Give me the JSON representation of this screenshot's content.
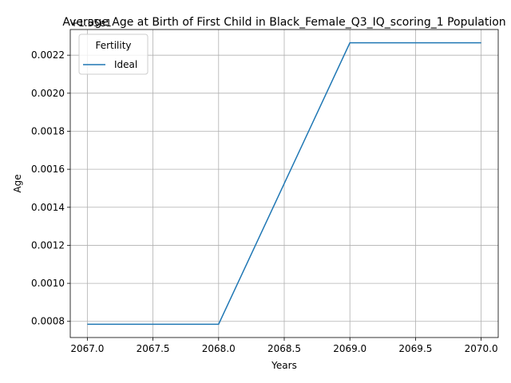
{
  "chart_data": {
    "type": "line",
    "title": "Average Age at Birth of First Child in Black_Female_Q3_IQ_scoring_1 Population",
    "xlabel": "Years",
    "ylabel": "Age",
    "offset_text": "+1.55e1",
    "x": [
      2067,
      2068,
      2069,
      2070
    ],
    "series": [
      {
        "name": "Ideal",
        "color": "#1f77b4",
        "values": [
          0.000785,
          0.000785,
          0.002265,
          0.002265
        ]
      }
    ],
    "xlim": [
      2066.87,
      2070.13
    ],
    "ylim": [
      0.000715,
      0.002335
    ],
    "xticks": [
      2067.0,
      2067.5,
      2068.0,
      2068.5,
      2069.0,
      2069.5,
      2070.0
    ],
    "xtick_labels": [
      "2067.0",
      "2067.5",
      "2068.0",
      "2068.5",
      "2069.0",
      "2069.5",
      "2070.0"
    ],
    "yticks": [
      0.0008,
      0.001,
      0.0012,
      0.0014,
      0.0016,
      0.0018,
      0.002,
      0.0022
    ],
    "ytick_labels": [
      "0.0008",
      "0.0010",
      "0.0012",
      "0.0014",
      "0.0016",
      "0.0018",
      "0.0020",
      "0.0022"
    ],
    "grid": true,
    "legend": {
      "title": "Fertility",
      "placement": "upper-left"
    }
  }
}
